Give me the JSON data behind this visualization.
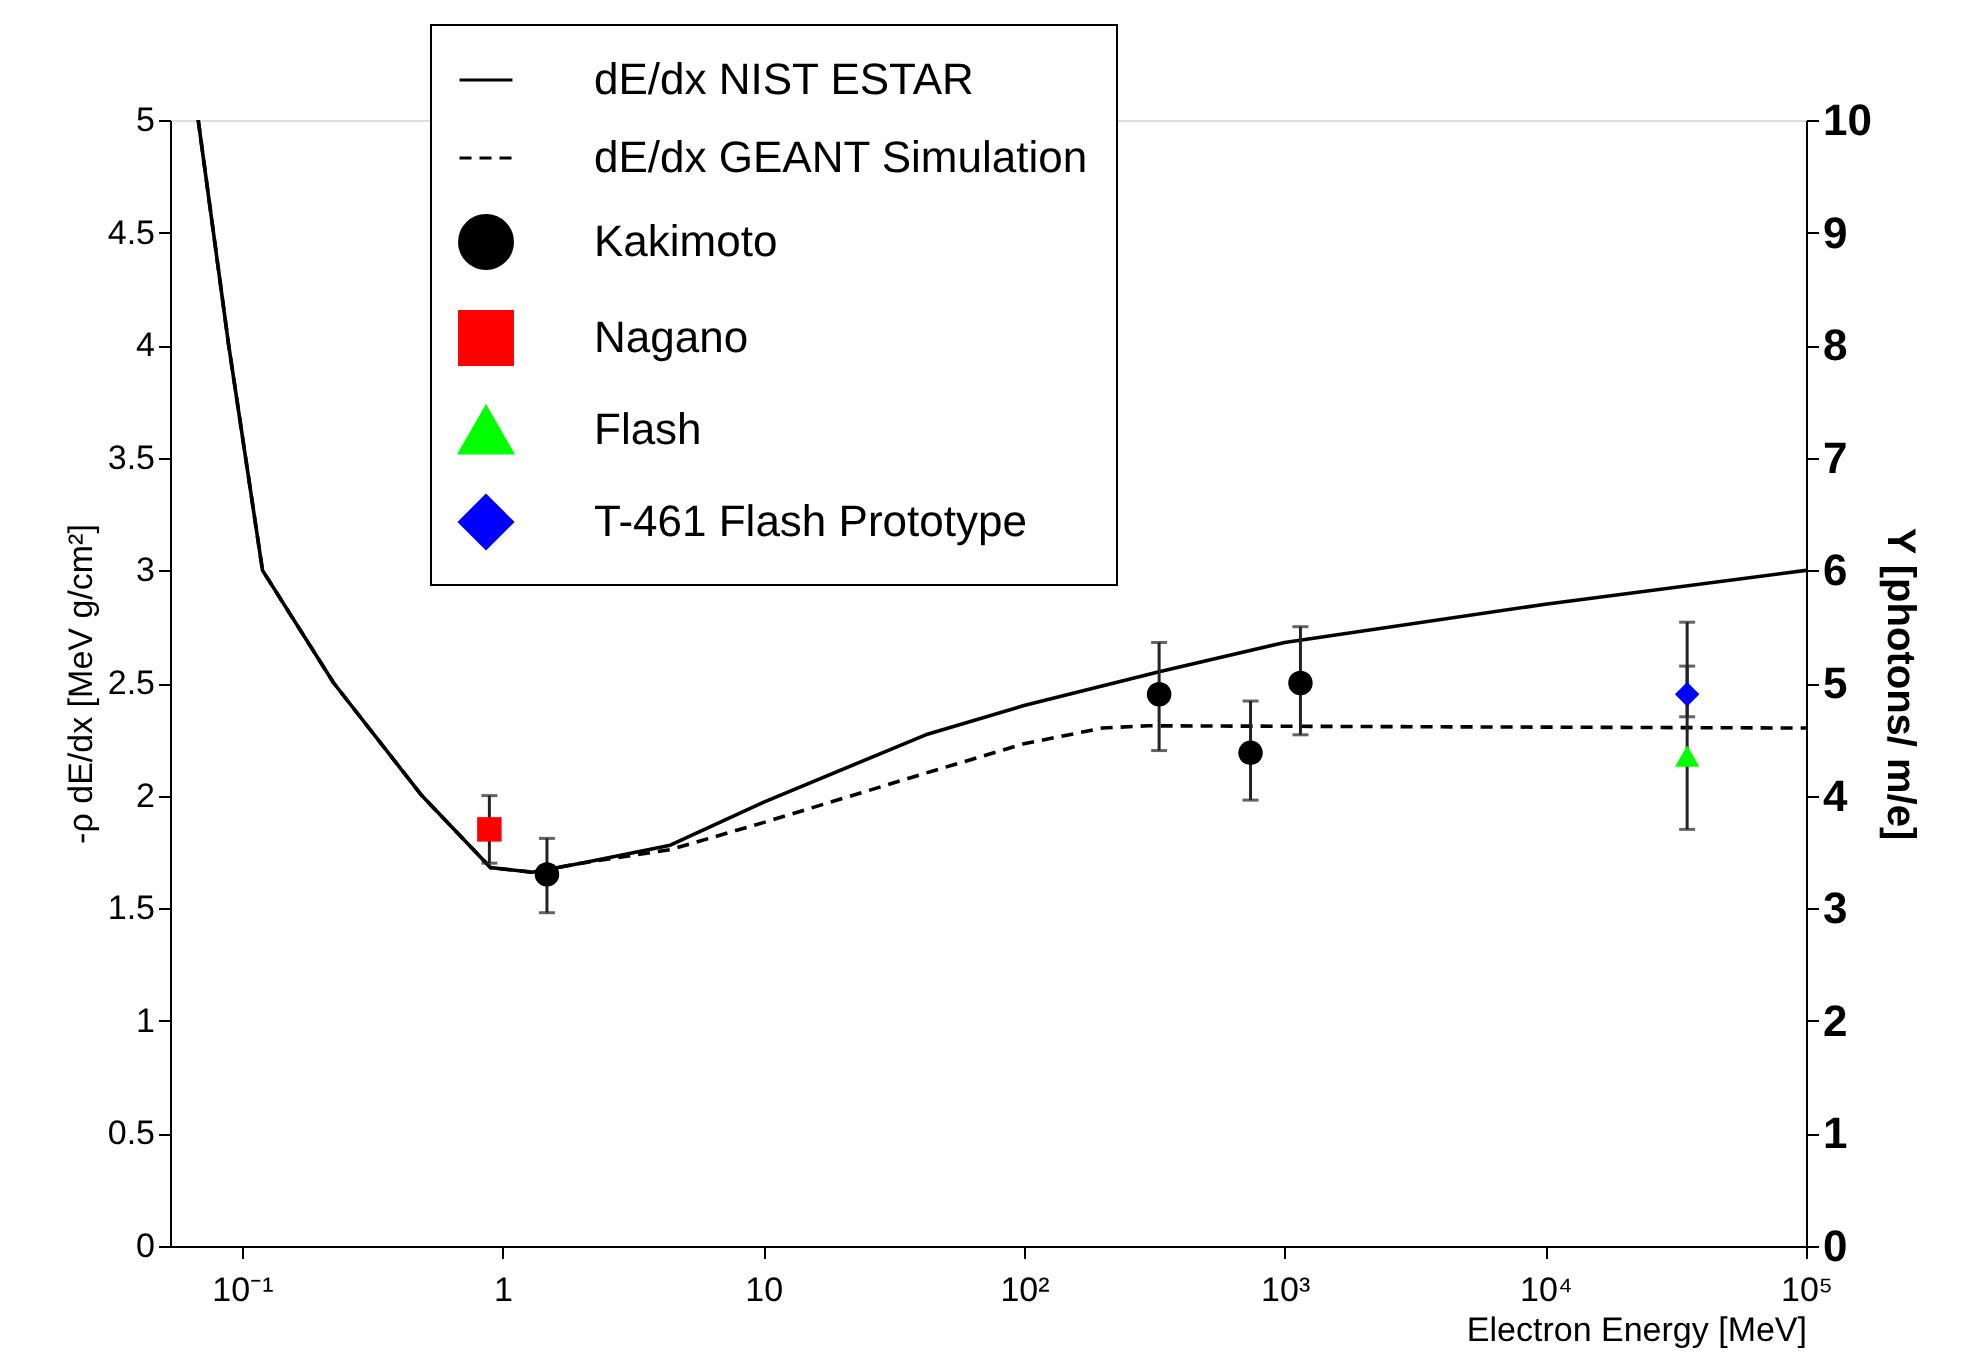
{
  "chart_data": {
    "type": "line",
    "xlabel": "Electron Energy [MeV]",
    "ylabel": "-ρ dE/dx  [MeV g/cm²]",
    "y2label": "Y [photons/ m/e]",
    "log": "x",
    "xlim": [
      0.053,
      100000
    ],
    "xticks": [
      {
        "value": 0.1,
        "label": "10⁻¹"
      },
      1,
      10,
      {
        "value": 100,
        "label": "10²"
      },
      {
        "value": 1000,
        "label": "10³"
      },
      {
        "value": 10000,
        "label": "10⁴"
      },
      {
        "value": 100000,
        "label": "10⁵"
      }
    ],
    "ylim": [
      0,
      5
    ],
    "yticks": [
      0,
      0.5,
      1,
      1.5,
      2,
      2.5,
      3,
      3.5,
      4,
      4.5,
      5
    ],
    "y2lim": [
      0,
      10
    ],
    "y2ticks": [
      0,
      1,
      2,
      3,
      4,
      5,
      6,
      7,
      8,
      9,
      10
    ],
    "grid": false,
    "legend": "top",
    "series": [
      {
        "name": "dE/dx NIST ESTAR",
        "type": "line",
        "line_style": "solid",
        "color": "#000000",
        "x": [
          0.068,
          0.089,
          0.12,
          0.225,
          0.49,
          0.9,
          1.3,
          2,
          4.4,
          10,
          42,
          100,
          330,
          1000,
          10000,
          100000
        ],
        "values": [
          5,
          4,
          3,
          2.5,
          2,
          1.68,
          1.66,
          1.7,
          1.78,
          1.97,
          2.27,
          2.4,
          2.55,
          2.68,
          2.85,
          3.0
        ]
      },
      {
        "name": "dE/dx GEANT Simulation",
        "type": "line",
        "line_style": "dashed",
        "color": "#000000",
        "x": [
          0.068,
          0.089,
          0.12,
          0.225,
          0.49,
          0.9,
          1.3,
          2,
          4.4,
          10,
          42,
          100,
          200,
          300,
          100000
        ],
        "values": [
          5,
          4,
          3,
          2.5,
          2,
          1.68,
          1.66,
          1.7,
          1.76,
          1.88,
          2.1,
          2.23,
          2.3,
          2.31,
          2.3
        ]
      },
      {
        "name": "Kakimoto",
        "type": "scatter",
        "axis": "y2",
        "marker": "circle",
        "color": "#000000",
        "x": [
          1.48,
          330,
          740,
          1150
        ],
        "values": [
          3.3,
          4.9,
          4.38,
          5.0
        ],
        "errors": [
          [
            2.96,
            3.62
          ],
          [
            4.4,
            5.36
          ],
          [
            3.96,
            4.84
          ],
          [
            4.54,
            5.5
          ]
        ]
      },
      {
        "name": "Nagano",
        "type": "scatter",
        "axis": "y2",
        "marker": "square",
        "color": "#ff0000",
        "x": [
          0.89
        ],
        "values": [
          3.7
        ],
        "errors": [
          [
            3.4,
            4.0
          ]
        ]
      },
      {
        "name": "Flash",
        "type": "scatter",
        "axis": "y2",
        "marker": "triangle",
        "color": "#00ff00",
        "x": [
          35000
        ],
        "values": [
          4.35
        ],
        "errors": [
          [
            3.7,
            5.54
          ]
        ]
      },
      {
        "name": "T-461 Flash Prototype",
        "type": "scatter",
        "axis": "y2",
        "marker": "diamond",
        "color": "#0000ff",
        "x": [
          35000
        ],
        "values": [
          4.9
        ],
        "errors": [
          [
            4.7,
            5.15
          ]
        ]
      }
    ]
  }
}
